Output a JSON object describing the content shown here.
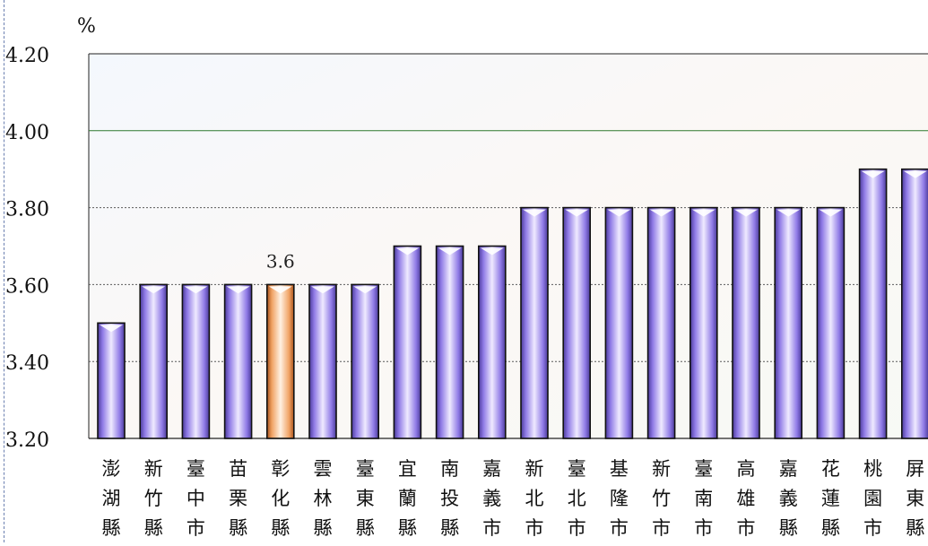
{
  "chart_data": {
    "type": "bar",
    "unit_label": "%",
    "ylim": [
      3.2,
      4.2
    ],
    "yticks": [
      "4.20",
      "4.00",
      "3.80",
      "3.60",
      "3.40",
      "3.20"
    ],
    "grid": true,
    "categories": [
      "澎湖縣",
      "新竹縣",
      "臺中市",
      "苗栗縣",
      "彰化縣",
      "雲林縣",
      "臺東縣",
      "宜蘭縣",
      "南投縣",
      "嘉義市",
      "新北市",
      "臺北市",
      "基隆市",
      "新竹市",
      "臺南市",
      "高雄市",
      "嘉義縣",
      "花蓮縣",
      "桃園市",
      "屏東縣"
    ],
    "values": [
      3.5,
      3.6,
      3.6,
      3.6,
      3.6,
      3.6,
      3.6,
      3.7,
      3.7,
      3.7,
      3.8,
      3.8,
      3.8,
      3.8,
      3.8,
      3.8,
      3.8,
      3.8,
      3.9,
      3.9
    ],
    "highlight_index": 4,
    "data_labels": [
      {
        "index": 4,
        "text": "3.6"
      }
    ],
    "colors": {
      "bar": "#9f8cf0",
      "bar_highlight": "#f2a25a",
      "grid_major": "#2f7a2f",
      "grid_minor": "#5b5b5b"
    }
  }
}
